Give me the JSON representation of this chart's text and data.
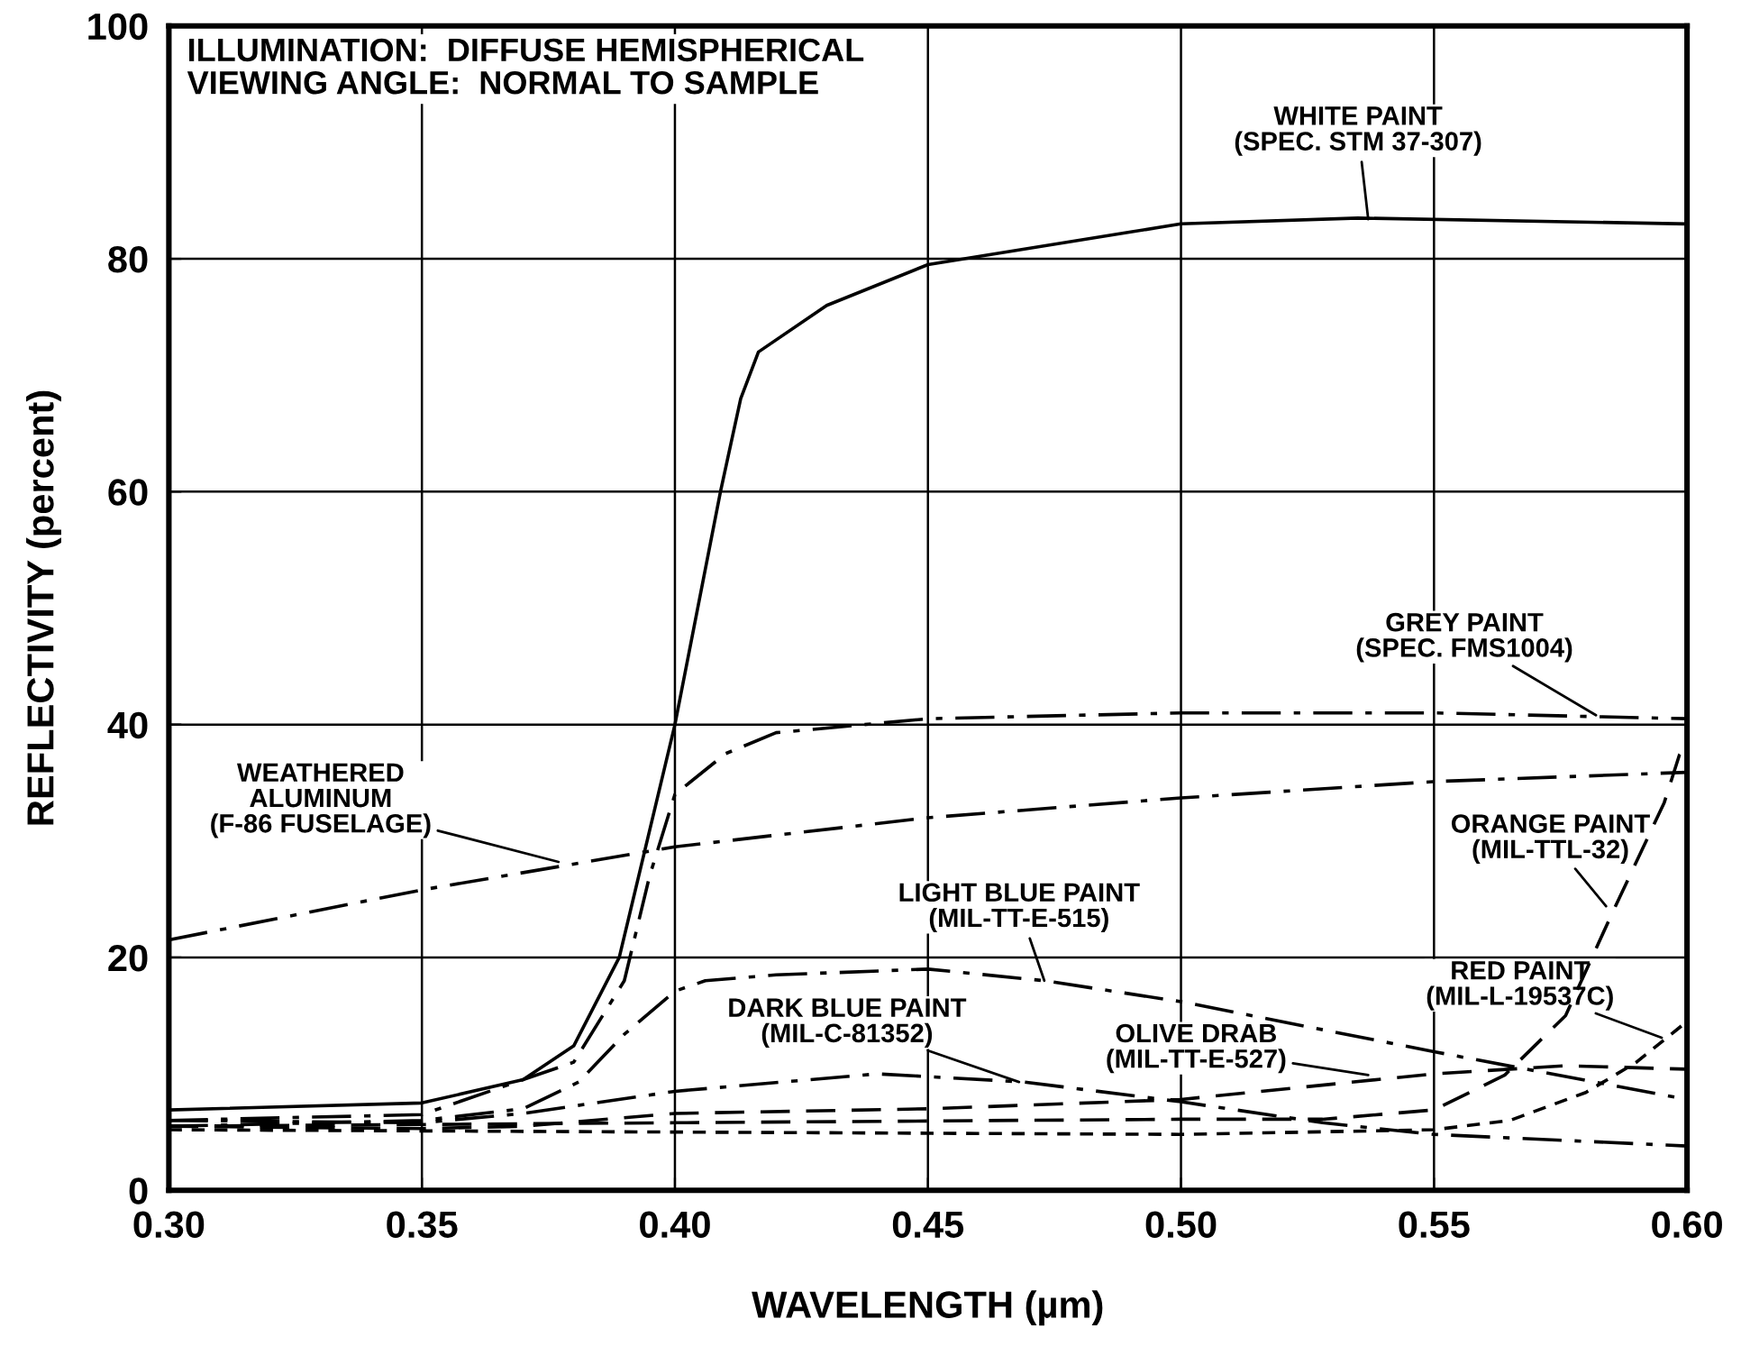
{
  "chart_data": {
    "type": "line",
    "xlabel": "WAVELENGTH (µm)",
    "ylabel": "REFLECTIVITY (percent)",
    "xlim": [
      0.3,
      0.6
    ],
    "ylim": [
      0,
      100
    ],
    "xticks": [
      {
        "value": 0.3,
        "label": "0.30"
      },
      {
        "value": 0.35,
        "label": "0.35"
      },
      {
        "value": 0.4,
        "label": "0.40"
      },
      {
        "value": 0.45,
        "label": "0.45"
      },
      {
        "value": 0.5,
        "label": "0.50"
      },
      {
        "value": 0.55,
        "label": "0.55"
      },
      {
        "value": 0.6,
        "label": "0.60"
      }
    ],
    "yticks": [
      0,
      20,
      40,
      60,
      80,
      100
    ],
    "grid": true,
    "marker": "none",
    "series": [
      {
        "color": "#000000",
        "line_style": "solid",
        "x": [
          0.3,
          0.35,
          0.37,
          0.38,
          0.389,
          0.4,
          0.409,
          0.413,
          0.4165,
          0.43,
          0.45,
          0.5,
          0.535,
          0.6
        ],
        "values": [
          6.9,
          7.5,
          9.5,
          12.4,
          20,
          40,
          60,
          68,
          72,
          76,
          79.5,
          83,
          83.5,
          83
        ]
      },
      {
        "color": "#000000",
        "line_style": "dashdot",
        "x": [
          0.3,
          0.35,
          0.38,
          0.39,
          0.395,
          0.4,
          0.41,
          0.42,
          0.45,
          0.5,
          0.55,
          0.6
        ],
        "values": [
          6,
          6.5,
          11,
          18,
          27,
          34,
          37.5,
          39.3,
          40.5,
          41,
          41,
          40.5
        ]
      },
      {
        "color": "#000000",
        "line_style": "dashdot",
        "x": [
          0.3,
          0.35,
          0.4,
          0.45,
          0.5,
          0.55,
          0.6
        ],
        "values": [
          21.5,
          25.8,
          29.5,
          32,
          33.7,
          35.1,
          35.9
        ]
      },
      {
        "color": "#000000",
        "line_style": "dashdot",
        "x": [
          0.3,
          0.35,
          0.37,
          0.381,
          0.39,
          0.4,
          0.406,
          0.42,
          0.45,
          0.473,
          0.5,
          0.55,
          0.6
        ],
        "values": [
          5.5,
          6,
          7,
          9.3,
          13.4,
          17.1,
          18,
          18.5,
          19,
          18,
          16.2,
          11.9,
          7.8
        ]
      },
      {
        "color": "#000000",
        "line_style": "dashdot",
        "x": [
          0.3,
          0.35,
          0.37,
          0.4,
          0.44,
          0.469,
          0.5,
          0.528,
          0.55,
          0.6
        ],
        "values": [
          6,
          5.8,
          6.6,
          8.5,
          10,
          9.3,
          7.6,
          5.8,
          4.8,
          3.8
        ]
      },
      {
        "color": "#000000",
        "line_style": "dashed",
        "x": [
          0.3,
          0.35,
          0.37,
          0.4,
          0.45,
          0.5,
          0.55,
          0.576,
          0.6
        ],
        "values": [
          5.5,
          5.3,
          5.5,
          6.6,
          7,
          7.8,
          10,
          10.7,
          10.4
        ]
      },
      {
        "color": "#000000",
        "line_style": "dotted",
        "x": [
          0.3,
          0.4,
          0.5,
          0.55,
          0.565,
          0.58,
          0.59,
          0.6
        ],
        "values": [
          5.2,
          5,
          4.8,
          5.2,
          6,
          8.4,
          11,
          14.5
        ]
      },
      {
        "color": "#000000",
        "line_style": "dashed",
        "x": [
          0.3,
          0.4,
          0.5,
          0.528,
          0.55,
          0.564,
          0.576,
          0.585,
          0.5955,
          0.5985,
          0.6
        ],
        "values": [
          5.5,
          5.8,
          6.1,
          6.1,
          6.9,
          9.9,
          15,
          23.6,
          33.3,
          37.4,
          38.3
        ]
      }
    ],
    "annotations": [
      "ILLUMINATION:  DIFFUSE HEMISPHERICAL\nVIEWING ANGLE:  NORMAL TO SAMPLE",
      {
        "text": "WHITE PAINT\n(SPEC. STM 37-307)",
        "x": 0.537,
        "y": 83.4
      },
      {
        "text": "GREY PAINT\n(SPEC. FMS1004)",
        "x": 0.582,
        "y": 40.8
      },
      {
        "text": "WEATHERED\nALUMINUM\n(F-86 FUSELAGE)",
        "x": 0.377,
        "y": 28.2
      },
      {
        "text": "LIGHT BLUE PAINT\n(MIL-TT-E-515)",
        "x": 0.473,
        "y": 18
      },
      {
        "text": "DARK BLUE PAINT\n(MIL-C-81352)",
        "x": 0.468,
        "y": 9.3
      },
      {
        "text": "OLIVE DRAB\n(MIL-TT-E-527)",
        "x": 0.537,
        "y": 9.9
      },
      {
        "text": "ORANGE PAINT\n(MIL-TTL-32)",
        "x": 0.584,
        "y": 24.4
      },
      {
        "text": "RED PAINT\n(MIL-L-19537C)",
        "x": 0.595,
        "y": 13.1
      }
    ]
  }
}
